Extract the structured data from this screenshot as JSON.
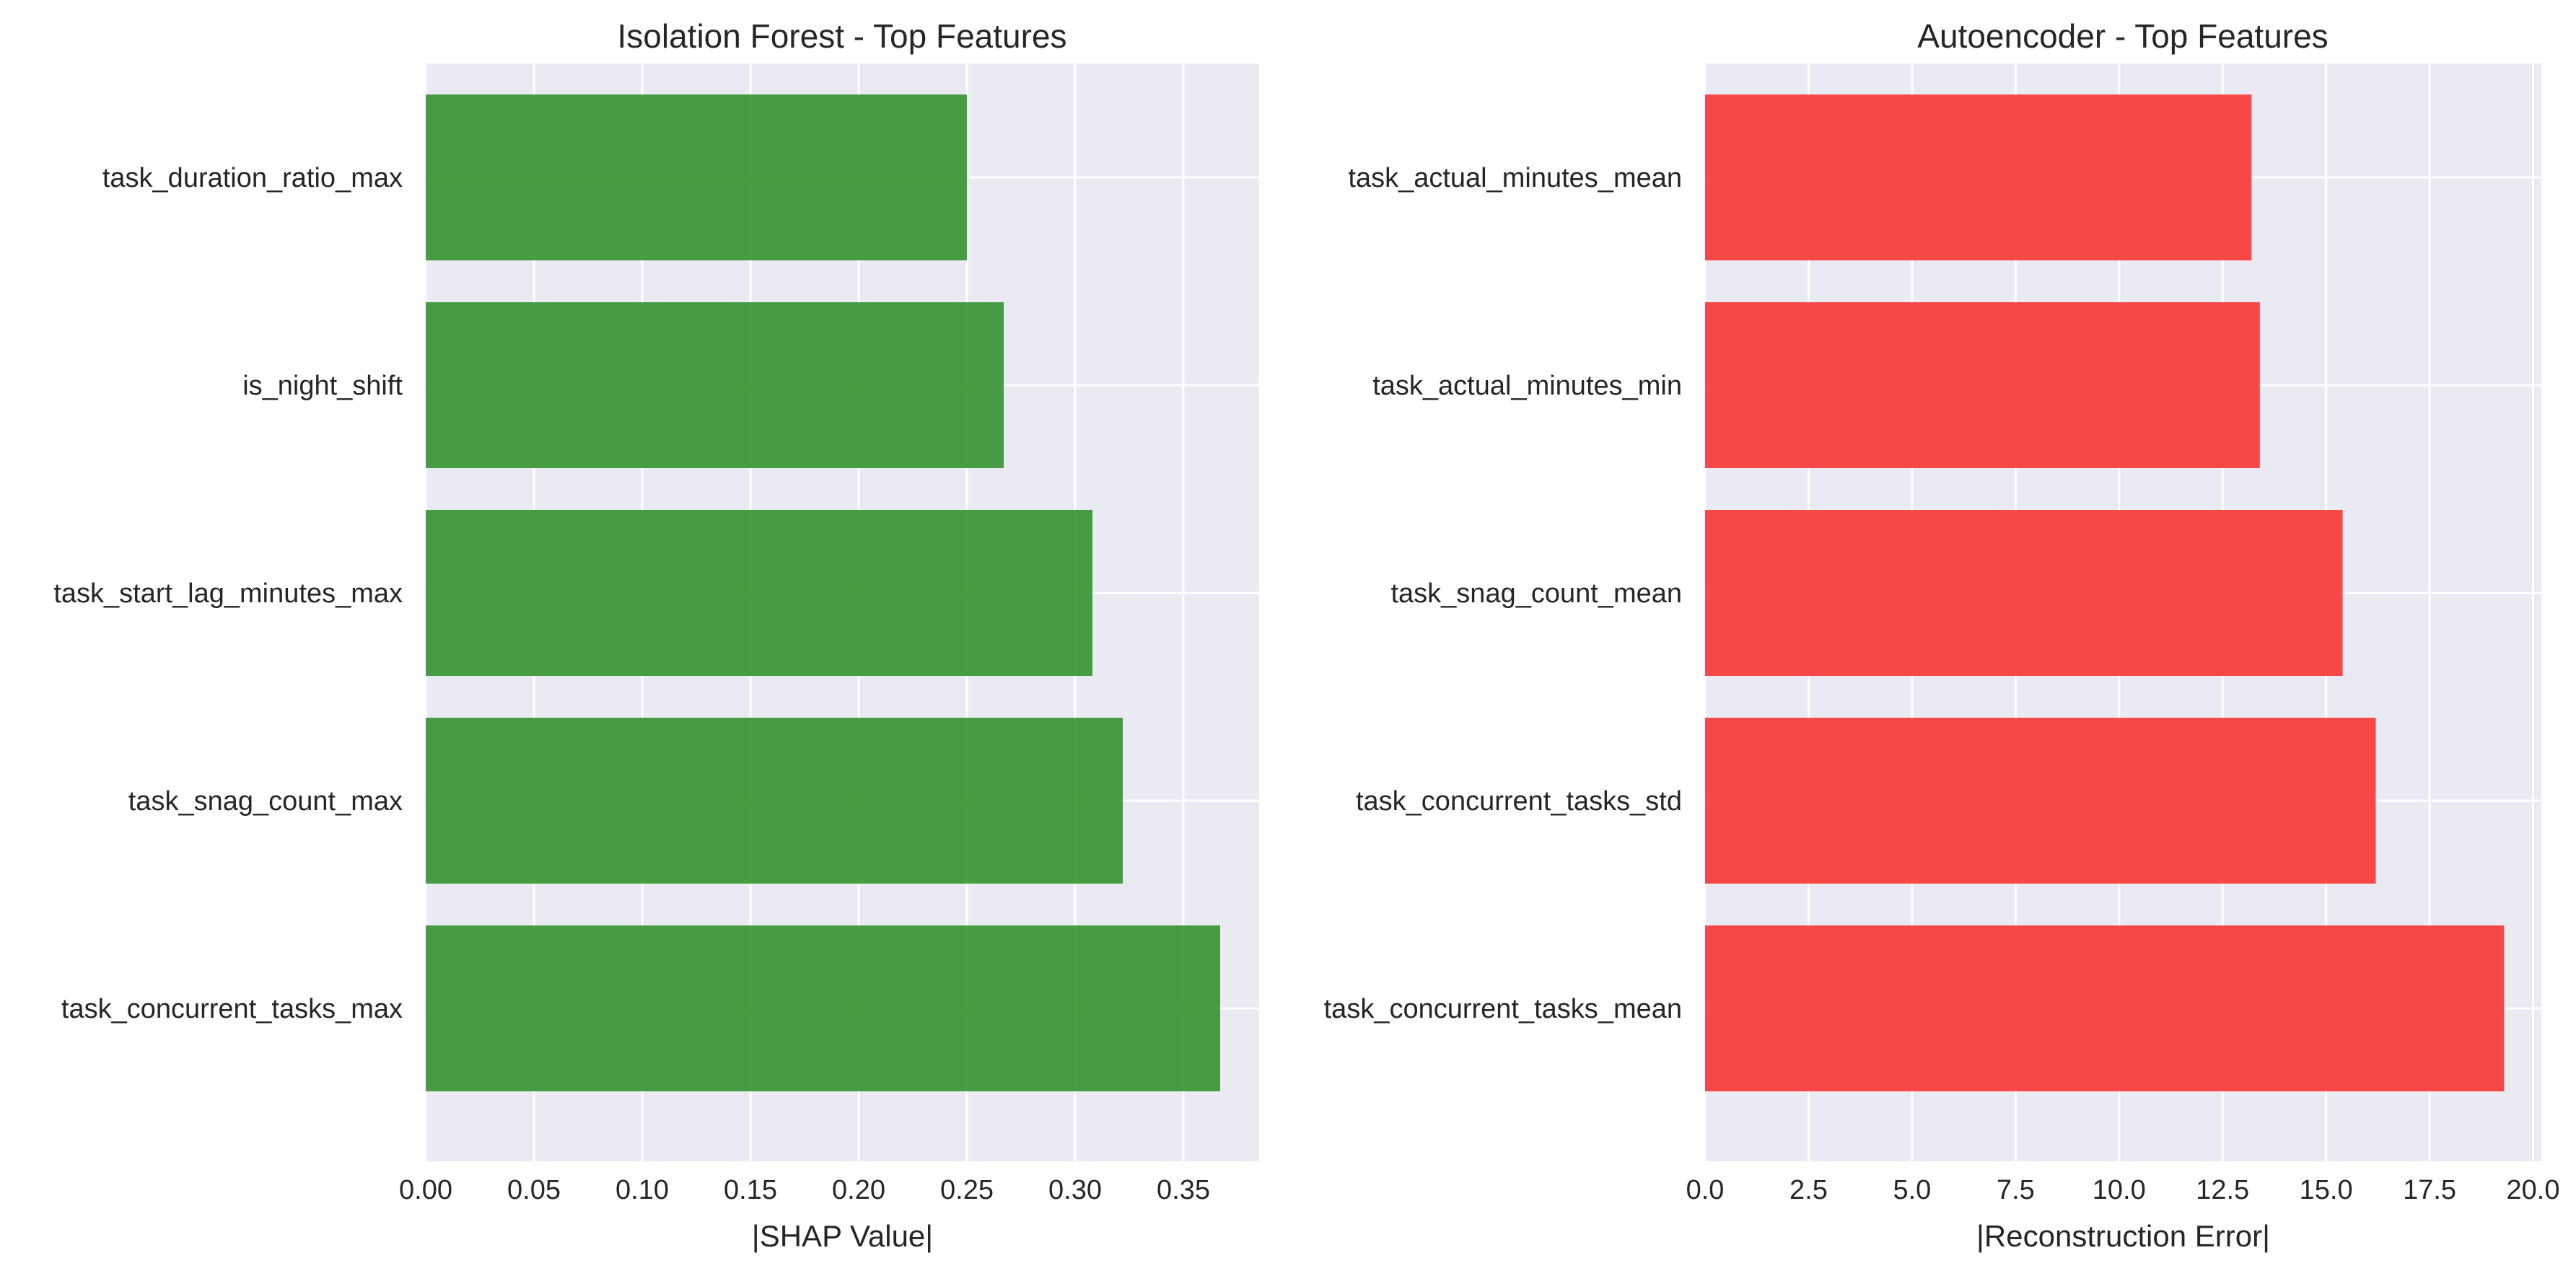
{
  "chart_data": [
    {
      "type": "bar",
      "orientation": "horizontal",
      "title": "Isolation Forest - Top Features",
      "xlabel": "|SHAP Value|",
      "ylabel": "",
      "categories": [
        "task_duration_ratio_max",
        "is_night_shift",
        "task_start_lag_minutes_max",
        "task_snag_count_max",
        "task_concurrent_tasks_max"
      ],
      "values": [
        0.25,
        0.267,
        0.308,
        0.322,
        0.367
      ],
      "xlim": [
        0,
        0.385
      ],
      "xticks": [
        "0.00",
        "0.05",
        "0.10",
        "0.15",
        "0.20",
        "0.25",
        "0.30",
        "0.35"
      ],
      "color": "#3a9435",
      "grid": true
    },
    {
      "type": "bar",
      "orientation": "horizontal",
      "title": "Autoencoder - Top Features",
      "xlabel": "|Reconstruction Error|",
      "ylabel": "",
      "categories": [
        "task_actual_minutes_mean",
        "task_actual_minutes_min",
        "task_snag_count_mean",
        "task_concurrent_tasks_std",
        "task_concurrent_tasks_mean"
      ],
      "values": [
        13.2,
        13.4,
        15.4,
        16.2,
        19.3
      ],
      "xlim": [
        0,
        20.2
      ],
      "xticks": [
        "0.0",
        "2.5",
        "5.0",
        "7.5",
        "10.0",
        "12.5",
        "15.0",
        "17.5",
        "20.0"
      ],
      "color": "#f93a3a",
      "grid": true
    }
  ]
}
